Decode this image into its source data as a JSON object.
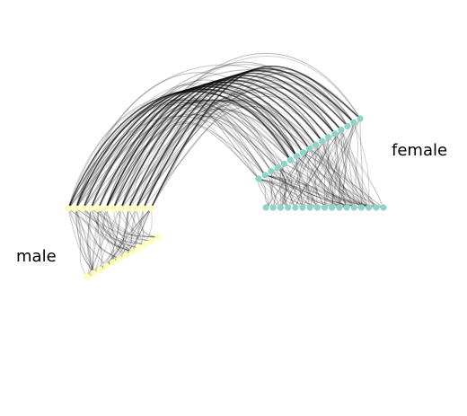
{
  "groups": [
    {
      "id": "male",
      "label": "male",
      "color": "#ffffb3",
      "nodes_per_axis": 12
    },
    {
      "id": "female",
      "label": "female",
      "color": "#8dd3c7",
      "nodes_per_axis": 17
    }
  ],
  "edge_style": {
    "color": "#000000"
  }
}
